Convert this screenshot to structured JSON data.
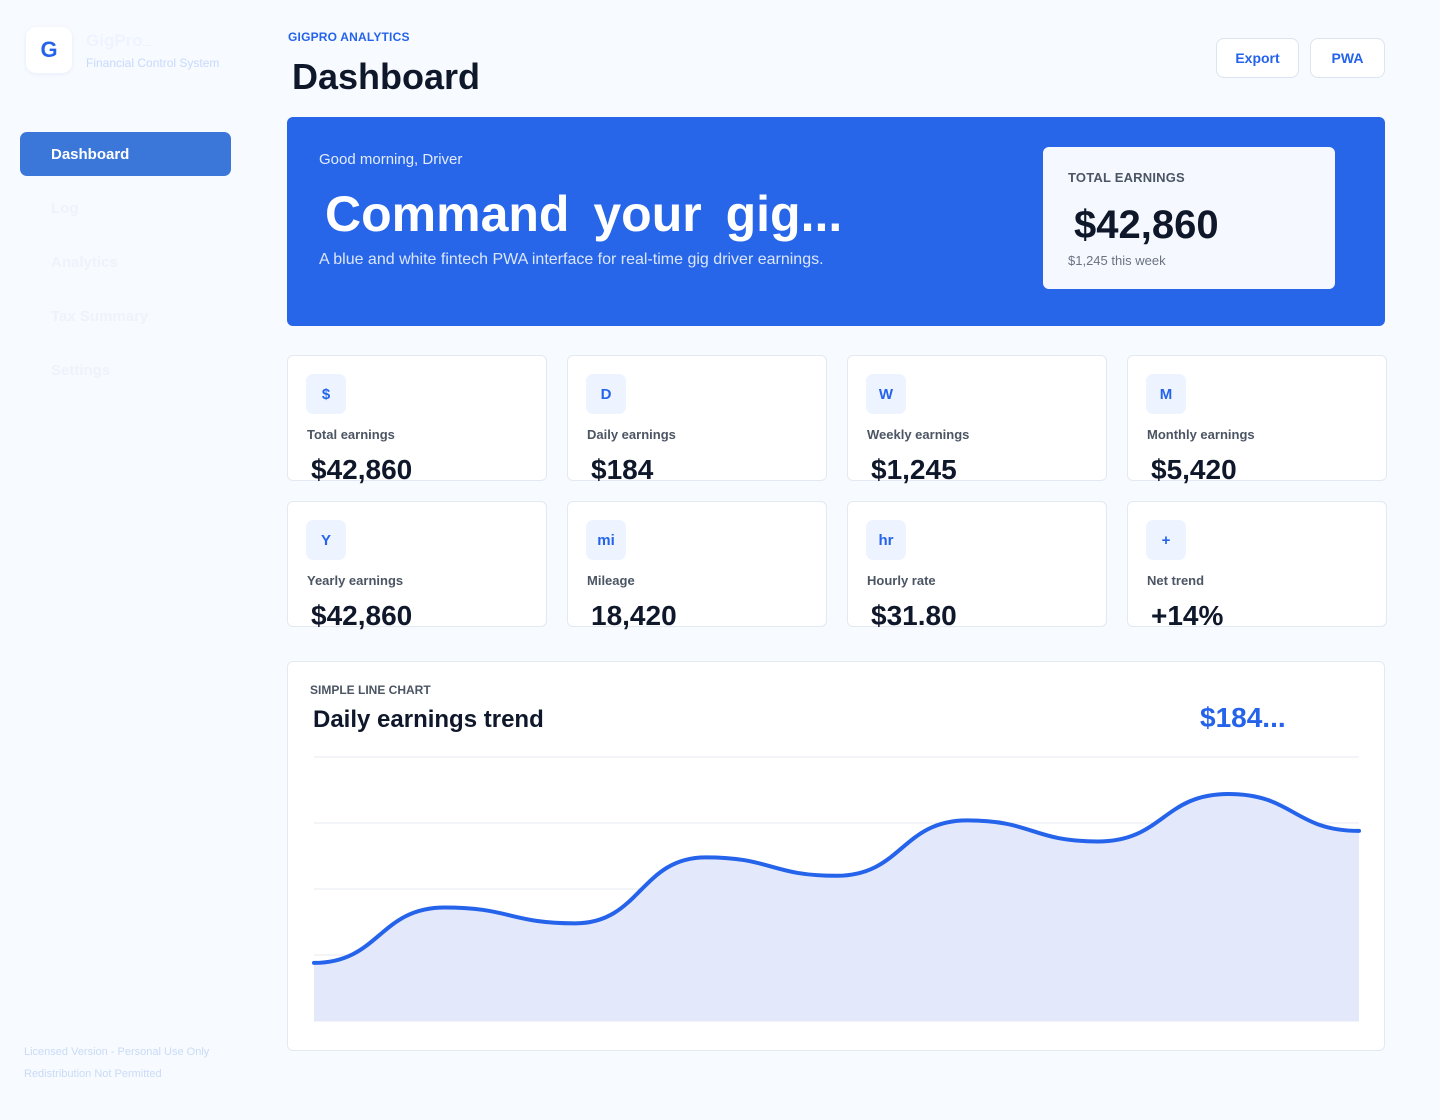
{
  "brand": {
    "logo_letter": "G",
    "name": "GigPro",
    "name_suffix": "...",
    "subtitle": "Financial Control System"
  },
  "nav": {
    "items": [
      {
        "label": "Dashboard",
        "active": true
      },
      {
        "label": "Log",
        "active": false
      },
      {
        "label": "Analytics",
        "active": false
      },
      {
        "label": "Tax Summary",
        "active": false
      },
      {
        "label": "Settings",
        "active": false
      }
    ]
  },
  "license": {
    "line1": "Licensed Version - Personal Use Only",
    "line2": "Redistribution Not Permitted"
  },
  "header": {
    "eyebrow": "GIGPRO ANALYTICS",
    "title": "Dashboard",
    "export_label": "Export",
    "pwa_label": "PWA"
  },
  "hero": {
    "greeting": "Good morning, Driver",
    "title": "Command your gig...",
    "subtitle": "A blue and white fintech PWA interface for real-time gig driver earnings.",
    "total_label": "TOTAL EARNINGS",
    "total_value": "$42,860",
    "total_week": "$1,245 this week"
  },
  "stats": [
    {
      "icon": "$",
      "label": "Total earnings",
      "value": "$42,860"
    },
    {
      "icon": "D",
      "label": "Daily earnings",
      "value": "$184"
    },
    {
      "icon": "W",
      "label": "Weekly earnings",
      "value": "$1,245"
    },
    {
      "icon": "M",
      "label": "Monthly earnings",
      "value": "$5,420"
    },
    {
      "icon": "Y",
      "label": "Yearly earnings",
      "value": "$42,860"
    },
    {
      "icon": "mi",
      "label": "Mileage",
      "value": "18,420"
    },
    {
      "icon": "hr",
      "label": "Hourly rate",
      "value": "$31.80"
    },
    {
      "icon": "+",
      "label": "Net trend",
      "value": "+14%"
    }
  ],
  "chart": {
    "eyebrow": "SIMPLE LINE CHART",
    "title": "Daily earnings trend",
    "figure": "$184..."
  },
  "colors": {
    "accent": "#2563eb",
    "hero_bg": "#2766e8",
    "area_fill": "#e3e9fb"
  },
  "chart_data": {
    "type": "area",
    "title": "Daily earnings trend",
    "xlabel": "",
    "ylabel": "",
    "grid": true,
    "legend": "none",
    "ylim": [
      0,
      100
    ],
    "x": [
      0,
      1,
      2,
      3,
      4,
      5,
      6,
      7,
      8
    ],
    "values": [
      22,
      43,
      37,
      62,
      55,
      76,
      68,
      86,
      72
    ],
    "points_note_excluded": true
  }
}
